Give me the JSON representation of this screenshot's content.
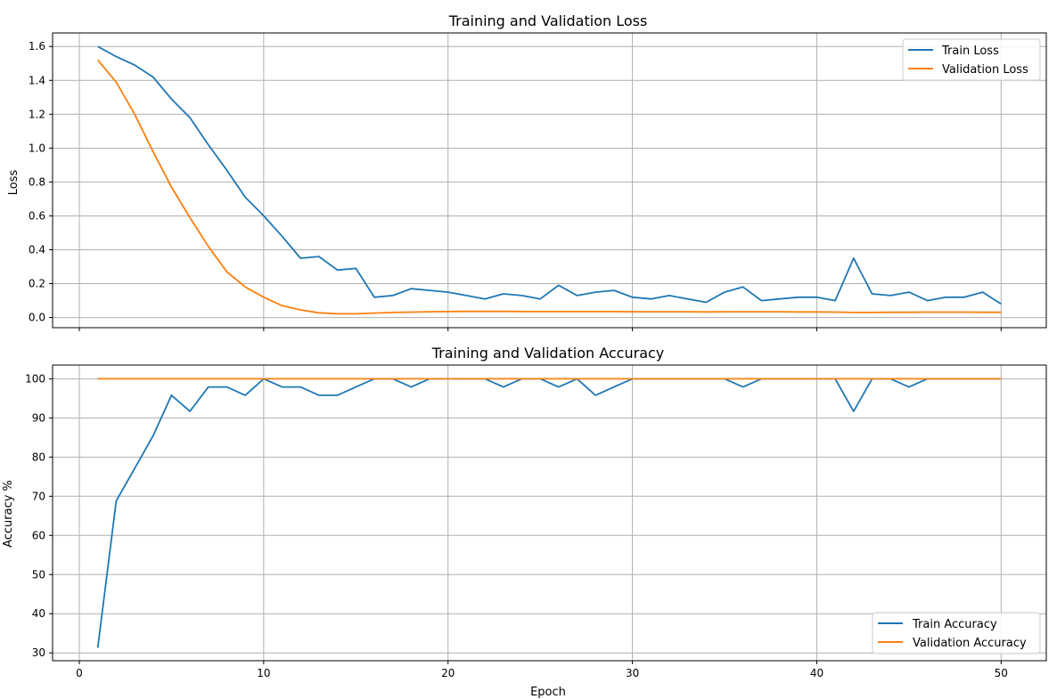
{
  "colors": {
    "train": "#1f77b4",
    "validation": "#ff7f0e",
    "grid": "#b0b0b0"
  },
  "chart_data": [
    {
      "type": "line",
      "title": "Training and Validation Loss",
      "xlabel": "",
      "ylabel": "Loss",
      "xlim": [
        -1.45,
        52.45
      ],
      "ylim": [
        -0.06,
        1.68
      ],
      "x_ticks": [
        0,
        10,
        20,
        30,
        40,
        50
      ],
      "x_tick_labels_visible": false,
      "y_ticks": [
        0.0,
        0.2,
        0.4,
        0.6,
        0.8,
        1.0,
        1.2,
        1.4,
        1.6
      ],
      "y_tick_labels": [
        "0.0",
        "0.2",
        "0.4",
        "0.6",
        "0.8",
        "1.0",
        "1.2",
        "1.4",
        "1.6"
      ],
      "grid": true,
      "legend_position": "top-right",
      "x": [
        1,
        2,
        3,
        4,
        5,
        6,
        7,
        8,
        9,
        10,
        11,
        12,
        13,
        14,
        15,
        16,
        17,
        18,
        19,
        20,
        21,
        22,
        23,
        24,
        25,
        26,
        27,
        28,
        29,
        30,
        31,
        32,
        33,
        34,
        35,
        36,
        37,
        38,
        39,
        40,
        41,
        42,
        43,
        44,
        45,
        46,
        47,
        48,
        49,
        50
      ],
      "series": [
        {
          "name": "Train Loss",
          "color": "#1f77b4",
          "values": [
            1.6,
            1.54,
            1.49,
            1.42,
            1.29,
            1.18,
            1.02,
            0.87,
            0.71,
            0.6,
            0.48,
            0.35,
            0.36,
            0.28,
            0.29,
            0.12,
            0.13,
            0.17,
            0.16,
            0.15,
            0.13,
            0.11,
            0.14,
            0.13,
            0.11,
            0.19,
            0.13,
            0.15,
            0.16,
            0.12,
            0.11,
            0.13,
            0.11,
            0.09,
            0.15,
            0.18,
            0.1,
            0.11,
            0.12,
            0.12,
            0.1,
            0.35,
            0.14,
            0.13,
            0.15,
            0.1,
            0.12,
            0.12,
            0.15,
            0.08
          ]
        },
        {
          "name": "Validation Loss",
          "color": "#ff7f0e",
          "values": [
            1.52,
            1.39,
            1.2,
            0.98,
            0.77,
            0.59,
            0.42,
            0.27,
            0.18,
            0.12,
            0.07,
            0.045,
            0.028,
            0.022,
            0.022,
            0.026,
            0.03,
            0.032,
            0.034,
            0.035,
            0.036,
            0.036,
            0.036,
            0.035,
            0.035,
            0.035,
            0.035,
            0.035,
            0.035,
            0.034,
            0.034,
            0.034,
            0.034,
            0.033,
            0.034,
            0.034,
            0.034,
            0.034,
            0.033,
            0.033,
            0.032,
            0.03,
            0.03,
            0.031,
            0.031,
            0.032,
            0.032,
            0.032,
            0.031,
            0.031
          ]
        }
      ]
    },
    {
      "type": "line",
      "title": "Training and Validation Accuracy",
      "xlabel": "Epoch",
      "ylabel": "Accuracy %",
      "xlim": [
        -1.45,
        52.45
      ],
      "ylim": [
        28.0,
        103.5
      ],
      "x_ticks": [
        0,
        10,
        20,
        30,
        40,
        50
      ],
      "x_tick_labels": [
        "0",
        "10",
        "20",
        "30",
        "40",
        "50"
      ],
      "y_ticks": [
        30,
        40,
        50,
        60,
        70,
        80,
        90,
        100
      ],
      "y_tick_labels": [
        "30",
        "40",
        "50",
        "60",
        "70",
        "80",
        "90",
        "100"
      ],
      "grid": true,
      "legend_position": "bottom-right",
      "x": [
        1,
        2,
        3,
        4,
        5,
        6,
        7,
        8,
        9,
        10,
        11,
        12,
        13,
        14,
        15,
        16,
        17,
        18,
        19,
        20,
        21,
        22,
        23,
        24,
        25,
        26,
        27,
        28,
        29,
        30,
        31,
        32,
        33,
        34,
        35,
        36,
        37,
        38,
        39,
        40,
        41,
        42,
        43,
        44,
        45,
        46,
        47,
        48,
        49,
        50
      ],
      "series": [
        {
          "name": "Train Accuracy",
          "color": "#1f77b4",
          "values": [
            31.3,
            68.8,
            77.1,
            85.4,
            95.8,
            91.7,
            97.9,
            97.9,
            95.8,
            100,
            97.9,
            97.9,
            95.8,
            95.8,
            97.9,
            100,
            100,
            97.9,
            100,
            100,
            100,
            100,
            97.9,
            100,
            100,
            97.9,
            100,
            95.8,
            97.9,
            100,
            100,
            100,
            100,
            100,
            100,
            97.9,
            100,
            100,
            100,
            100,
            100,
            91.7,
            100,
            100,
            97.9,
            100,
            100,
            100,
            100,
            100
          ]
        },
        {
          "name": "Validation Accuracy",
          "color": "#ff7f0e",
          "values": [
            100,
            100,
            100,
            100,
            100,
            100,
            100,
            100,
            100,
            100,
            100,
            100,
            100,
            100,
            100,
            100,
            100,
            100,
            100,
            100,
            100,
            100,
            100,
            100,
            100,
            100,
            100,
            100,
            100,
            100,
            100,
            100,
            100,
            100,
            100,
            100,
            100,
            100,
            100,
            100,
            100,
            100,
            100,
            100,
            100,
            100,
            100,
            100,
            100,
            100
          ]
        }
      ]
    }
  ]
}
